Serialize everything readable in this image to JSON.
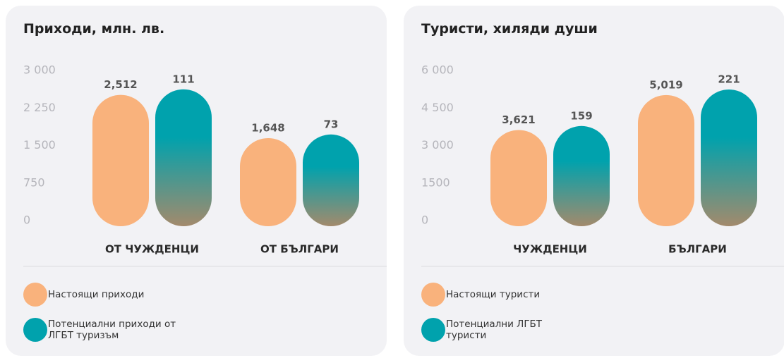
{
  "chart_data": [
    {
      "type": "bar",
      "title": "Приходи, млн. лв.",
      "categories": [
        "ОТ ЧУЖДЕНЦИ",
        "ОТ БЪЛГАРИ"
      ],
      "series": [
        {
          "name": "Настоящи приходи",
          "color": "#f9b27c",
          "values": [
            2512,
            1648
          ],
          "value_labels": [
            "2,512",
            "1,648"
          ]
        },
        {
          "name": "Потенциални приходи от ЛГБТ туризъм",
          "color": "#00a2ad",
          "values": [
            111,
            73
          ]
        }
      ],
      "ylim": [
        0,
        3000
      ],
      "yticks": [
        0,
        {
          "value": 750,
          "label": "750"
        },
        {
          "value": 1500,
          "label": "1 500"
        },
        {
          "value": 2250,
          "label": "2 250"
        },
        {
          "value": 3000,
          "label": "3 000"
        }
      ]
    },
    {
      "type": "bar",
      "title": "Туристи, хиляди души",
      "categories": [
        "ЧУЖДЕНЦИ",
        "БЪЛГАРИ"
      ],
      "series": [
        {
          "name": "Настоящи туристи",
          "color": "#f9b27c",
          "values": [
            3621,
            5019
          ],
          "value_labels": [
            "3,621",
            "5,019"
          ]
        },
        {
          "name": "Потенциални ЛГБТ туристи",
          "color": "#00a2ad",
          "values": [
            159,
            221
          ]
        }
      ],
      "ylim": [
        0,
        6000
      ],
      "yticks": [
        0,
        1500,
        {
          "value": 3000,
          "label": "3 000"
        },
        {
          "value": 4500,
          "label": "4 500"
        },
        {
          "value": 6000,
          "label": "6 000"
        }
      ]
    }
  ]
}
